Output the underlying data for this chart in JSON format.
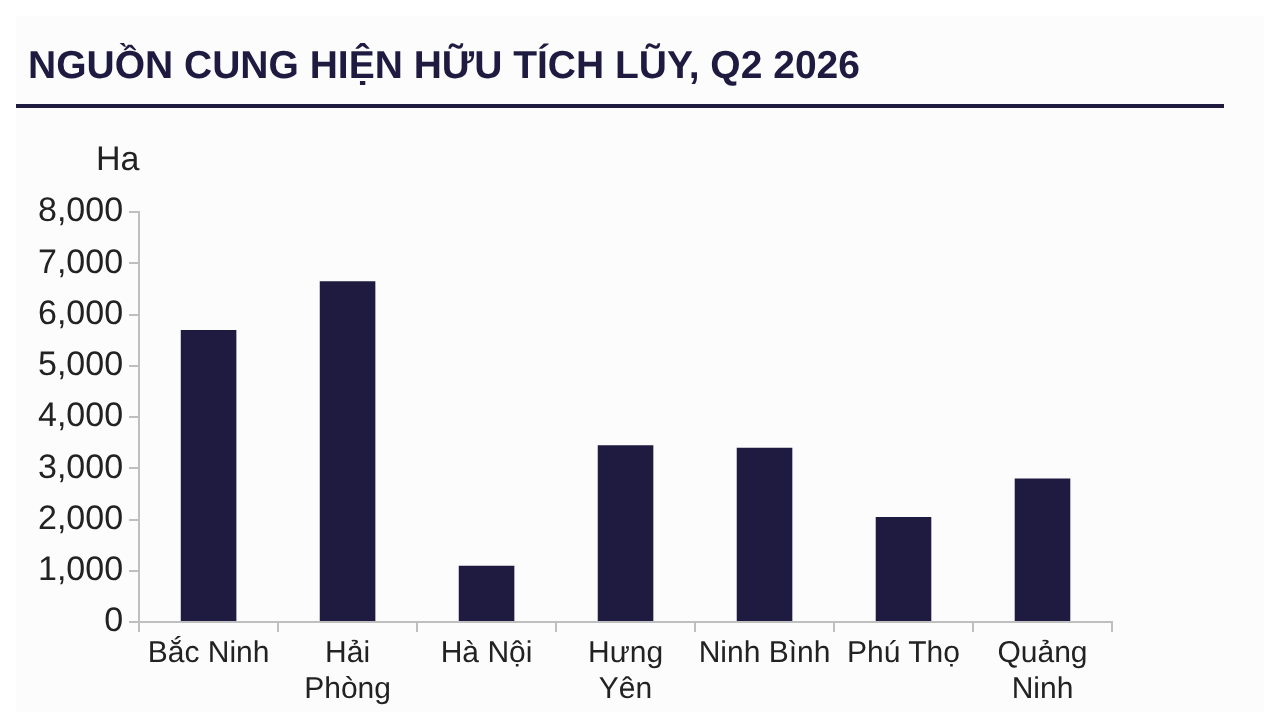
{
  "chart_data": {
    "type": "bar",
    "title": "NGUỒN CUNG HIỆN HỮU TÍCH LŨY, Q2 2026",
    "ylabel": "Ha",
    "categories": [
      "Bắc Ninh",
      "Hải\nPhòng",
      "Hà Nội",
      "Hưng\nYên",
      "Ninh Bình",
      "Phú Thọ",
      "Quảng\nNinh"
    ],
    "values": [
      5700,
      6650,
      1100,
      3450,
      3400,
      2050,
      2800
    ],
    "color": "#1e1a40",
    "ylim": [
      0,
      8000
    ],
    "yticks": [
      {
        "value": 0,
        "label": "0"
      },
      {
        "value": 1000,
        "label": "1,000"
      },
      {
        "value": 2000,
        "label": "2,000"
      },
      {
        "value": 3000,
        "label": "3,000"
      },
      {
        "value": 4000,
        "label": "4,000"
      },
      {
        "value": 5000,
        "label": "5,000"
      },
      {
        "value": 6000,
        "label": "6,000"
      },
      {
        "value": 7000,
        "label": "7,000"
      },
      {
        "value": 8000,
        "label": "8,000"
      }
    ],
    "grid": false,
    "legend": false
  }
}
